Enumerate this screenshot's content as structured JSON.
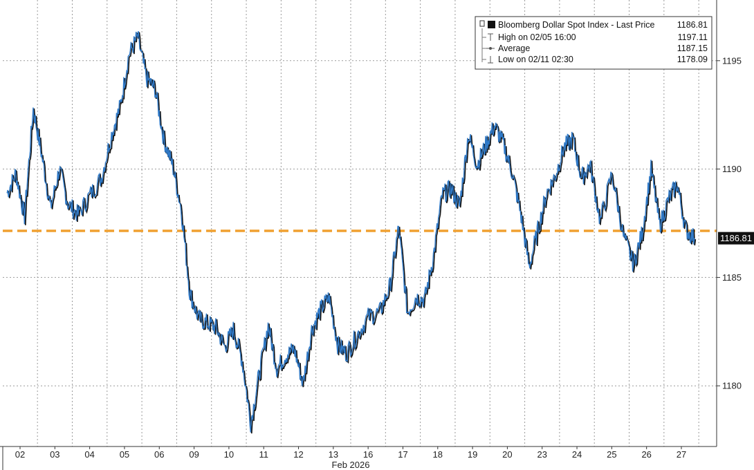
{
  "chart_data": {
    "type": "line",
    "title": "",
    "xlabel": "Feb 2026",
    "ylabel": "",
    "x_tick_labels": [
      "02",
      "03",
      "04",
      "05",
      "06",
      "09",
      "10",
      "11",
      "12",
      "13",
      "16",
      "17",
      "18",
      "19",
      "20",
      "23",
      "24",
      "25",
      "26",
      "27"
    ],
    "y_ticks": [
      1180,
      1185,
      1190,
      1195
    ],
    "ylim": [
      1177.2,
      1197.8
    ],
    "grid": true,
    "legend_position": "top-right",
    "colors": {
      "price_line": "#2f79c7",
      "price_shadow": "#111111",
      "average_line": "#f0a030",
      "grid": "#999999",
      "last_price_tag_bg": "#111111",
      "last_price_tag_text": "#ffffff"
    },
    "series": [
      {
        "name": "Bloomberg Dollar Spot Index - Last Price",
        "last_value": "1186.81",
        "points": [
          [
            "02",
            1188.9
          ],
          [
            "02",
            1189.8
          ],
          [
            "02",
            1187.8
          ],
          [
            "02",
            1192.8
          ],
          [
            "03",
            1190.6
          ],
          [
            "03",
            1188.2
          ],
          [
            "03",
            1190.0
          ],
          [
            "03",
            1188.4
          ],
          [
            "04",
            1187.9
          ],
          [
            "04",
            1188.8
          ],
          [
            "04",
            1189.6
          ],
          [
            "05",
            1191.6
          ],
          [
            "05",
            1192.9
          ],
          [
            "05",
            1195.3
          ],
          [
            "05",
            1196.1
          ],
          [
            "06",
            1194.2
          ],
          [
            "06",
            1193.7
          ],
          [
            "06",
            1191.4
          ],
          [
            "06",
            1190.2
          ],
          [
            "09",
            1188.2
          ],
          [
            "09",
            1184.3
          ],
          [
            "09",
            1183.1
          ],
          [
            "09",
            1182.9
          ],
          [
            "10",
            1182.7
          ],
          [
            "10",
            1181.8
          ],
          [
            "10",
            1182.6
          ],
          [
            "10",
            1181.2
          ],
          [
            "11",
            1178.3
          ],
          [
            "11",
            1180.6
          ],
          [
            "11",
            1182.8
          ],
          [
            "11",
            1180.8
          ],
          [
            "12",
            1181.4
          ],
          [
            "12",
            1181.7
          ],
          [
            "12",
            1180.1
          ],
          [
            "12",
            1182.6
          ],
          [
            "13",
            1183.5
          ],
          [
            "13",
            1184.1
          ],
          [
            "13",
            1181.9
          ],
          [
            "13",
            1181.5
          ],
          [
            "16",
            1182.3
          ],
          [
            "16",
            1183.2
          ],
          [
            "16",
            1183.4
          ],
          [
            "17",
            1184.6
          ],
          [
            "17",
            1187.3
          ],
          [
            "17",
            1183.4
          ],
          [
            "17",
            1184.1
          ],
          [
            "18",
            1184.0
          ],
          [
            "18",
            1186.0
          ],
          [
            "18",
            1188.8
          ],
          [
            "18",
            1189.1
          ],
          [
            "19",
            1188.3
          ],
          [
            "19",
            1191.6
          ],
          [
            "19",
            1190.2
          ],
          [
            "19",
            1191.1
          ],
          [
            "20",
            1192.0
          ],
          [
            "20",
            1191.2
          ],
          [
            "20",
            1189.9
          ],
          [
            "20",
            1188.0
          ],
          [
            "23",
            1185.5
          ],
          [
            "23",
            1187.2
          ],
          [
            "23",
            1188.9
          ],
          [
            "23",
            1189.7
          ],
          [
            "24",
            1191.0
          ],
          [
            "24",
            1191.4
          ],
          [
            "24",
            1189.6
          ],
          [
            "24",
            1190.2
          ],
          [
            "25",
            1187.6
          ],
          [
            "25",
            1189.8
          ],
          [
            "25",
            1186.9
          ],
          [
            "26",
            1185.6
          ],
          [
            "26",
            1187.1
          ],
          [
            "26",
            1190.0
          ],
          [
            "26",
            1187.4
          ],
          [
            "27",
            1188.6
          ],
          [
            "27",
            1189.3
          ],
          [
            "27",
            1187.2
          ],
          [
            "27",
            1186.81
          ]
        ]
      }
    ],
    "average_line": {
      "name": "Average",
      "value": 1187.15
    },
    "legend": {
      "title": "Bloomberg Dollar Spot Index - Last Price",
      "title_value": "1186.81",
      "rows": [
        {
          "label": "High on 02/05 16:00",
          "value": "1197.11"
        },
        {
          "label": "Average",
          "value": "1187.15"
        },
        {
          "label": "Low on 02/11 02:30",
          "value": "1178.09"
        }
      ]
    }
  }
}
